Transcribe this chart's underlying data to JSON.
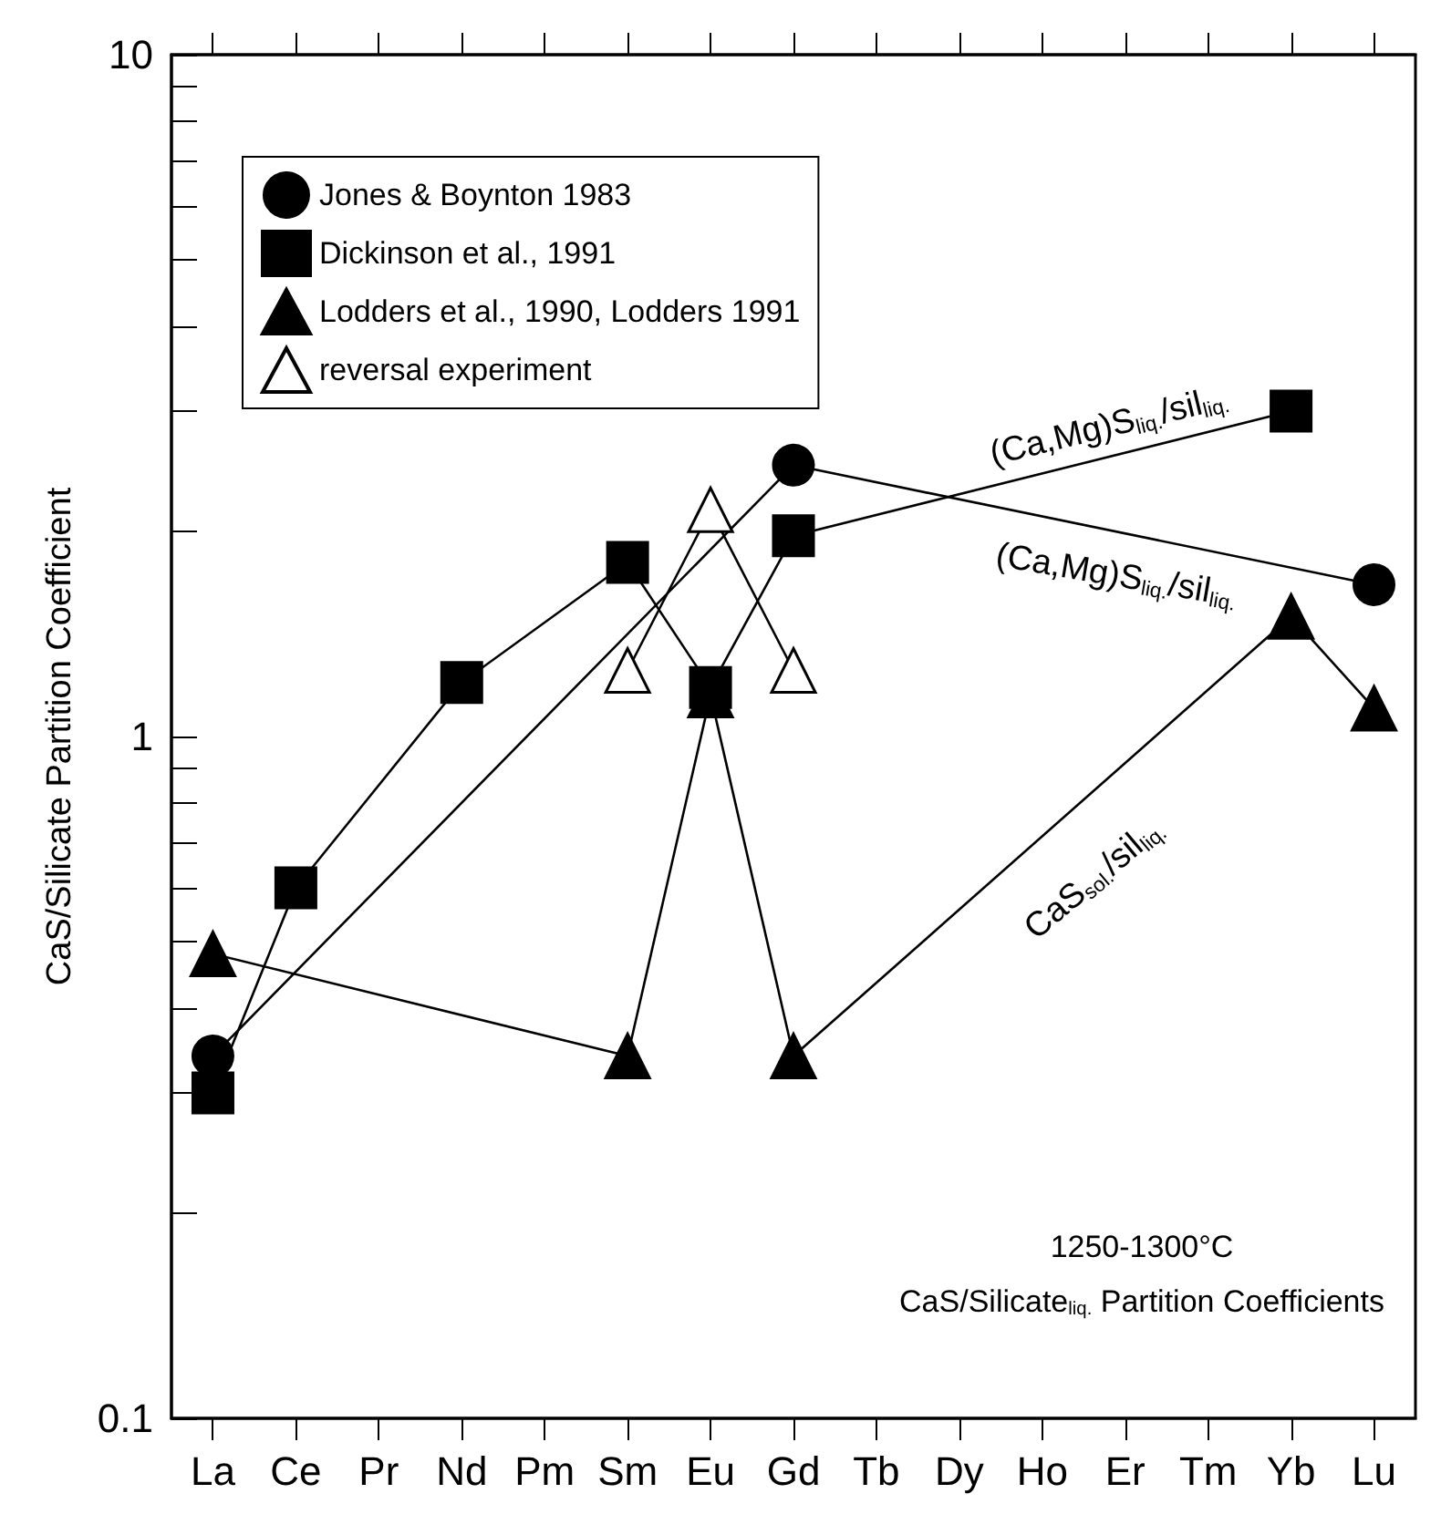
{
  "chart_data": {
    "type": "line",
    "ylabel": "CaS/Silicate Partition Coefficient",
    "categories": [
      "La",
      "Ce",
      "Pr",
      "Nd",
      "Pm",
      "Sm",
      "Eu",
      "Gd",
      "Tb",
      "Dy",
      "Ho",
      "Er",
      "Tm",
      "Yb",
      "Lu"
    ],
    "series": [
      {
        "name": "Jones & Boynton 1983",
        "color": "#000000",
        "marker": "circle",
        "values": [
          0.34,
          null,
          null,
          null,
          null,
          null,
          null,
          2.5,
          null,
          null,
          null,
          null,
          null,
          null,
          1.67
        ]
      },
      {
        "name": "Dickinson et al., 1991",
        "color": "#000000",
        "marker": "square",
        "values": [
          0.3,
          0.6,
          null,
          1.2,
          null,
          1.8,
          1.18,
          1.97,
          null,
          null,
          null,
          null,
          null,
          3.0,
          null
        ]
      },
      {
        "name": "Lodders et al., 1990, Lodders 1991",
        "color": "#000000",
        "marker": "triangle",
        "values": [
          0.48,
          null,
          null,
          null,
          null,
          0.34,
          1.15,
          0.34,
          null,
          null,
          null,
          null,
          null,
          1.5,
          1.1
        ]
      },
      {
        "name": "reversal experiment",
        "color": "#ffffff",
        "marker": "triangle",
        "values": [
          null,
          null,
          null,
          null,
          null,
          1.25,
          2.15,
          1.25,
          null,
          null,
          null,
          null,
          null,
          null,
          null
        ]
      }
    ],
    "log": "y",
    "ylim": [
      0.1,
      10
    ],
    "yticks": [
      0.1,
      {
        "value": 0.2,
        "label": null
      },
      {
        "value": 0.3,
        "label": null
      },
      {
        "value": 0.4,
        "label": null
      },
      {
        "value": 0.5,
        "label": null
      },
      {
        "value": 0.6,
        "label": null
      },
      {
        "value": 0.7,
        "label": null
      },
      {
        "value": 0.8,
        "label": null
      },
      {
        "value": 0.9,
        "label": null
      },
      1,
      {
        "value": 2,
        "label": null
      },
      {
        "value": 3,
        "label": null
      },
      {
        "value": 4,
        "label": null
      },
      {
        "value": 5,
        "label": null
      },
      {
        "value": 6,
        "label": null
      },
      {
        "value": 7,
        "label": null
      },
      {
        "value": 8,
        "label": null
      },
      {
        "value": 9,
        "label": null
      },
      10
    ],
    "grid": false,
    "legend": "top left",
    "line_style": "solid",
    "annotations": [
      "(Ca,Mg)S$_{liq.}$/sil$_{liq.}$",
      "(Ca,Mg)S$_{liq.}$/sil$_{liq.}$",
      "CaS$_{sol.}$/sil$_{liq.}$",
      "1250-1300°C",
      "CaS/Silicate$_{liq.}$ Partition Coefficients"
    ]
  }
}
